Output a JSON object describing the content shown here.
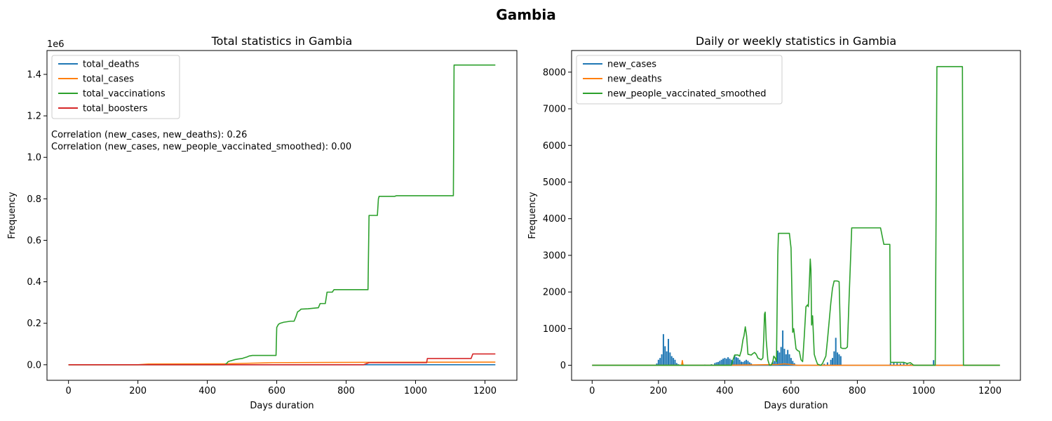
{
  "figure": {
    "title": "Gambia"
  },
  "chart_data": [
    {
      "type": "line",
      "title": "Total statistics in Gambia",
      "xlabel": "Days duration",
      "ylabel": "Frequency",
      "y_scale_label": "1e6",
      "xlim": [
        -62,
        1292
      ],
      "ylim": [
        -75000,
        1515000
      ],
      "x_ticks": [
        0,
        200,
        400,
        600,
        800,
        1000,
        1200
      ],
      "x_tick_labels": [
        "0",
        "200",
        "400",
        "600",
        "800",
        "1000",
        "1200"
      ],
      "y_ticks": [
        0,
        200000,
        400000,
        600000,
        800000,
        1000000,
        1200000,
        1400000
      ],
      "y_tick_labels": [
        "0.0",
        "0.2",
        "0.4",
        "0.6",
        "0.8",
        "1.0",
        "1.2",
        "1.4"
      ],
      "legend_position": "top-left",
      "annotations": [
        "Correlation (new_cases, new_deaths): 0.26",
        "Correlation (new_cases, new_people_vaccinated_smoothed): 0.00"
      ],
      "series": [
        {
          "name": "total_deaths",
          "color": "#1f77b4",
          "x": [
            0,
            200,
            400,
            600,
            800,
            1000,
            1230
          ],
          "y": [
            0,
            0,
            0,
            0,
            0,
            0,
            0
          ]
        },
        {
          "name": "total_cases",
          "color": "#ff7f0e",
          "x": [
            0,
            200,
            230,
            450,
            590,
            740,
            900,
            1100,
            1230
          ],
          "y": [
            0,
            0,
            3500,
            4500,
            10000,
            11000,
            12000,
            12500,
            12600
          ]
        },
        {
          "name": "total_vaccinations",
          "color": "#2ca02c",
          "x": [
            0,
            450,
            455,
            460,
            465,
            470,
            480,
            490,
            500,
            505,
            515,
            520,
            530,
            598,
            600,
            605,
            610,
            620,
            640,
            650,
            655,
            660,
            665,
            670,
            690,
            720,
            725,
            740,
            745,
            760,
            765,
            780,
            863,
            866,
            868,
            890,
            893,
            895,
            940,
            945,
            1109,
            1111,
            1120,
            1230
          ],
          "y": [
            0,
            0,
            5000,
            15000,
            18000,
            20000,
            25000,
            28000,
            30000,
            33000,
            38000,
            42000,
            45000,
            45000,
            180000,
            195000,
            200000,
            205000,
            210000,
            210000,
            230000,
            255000,
            260000,
            268000,
            270000,
            275000,
            295000,
            295000,
            350000,
            350000,
            362000,
            362000,
            362000,
            720000,
            720000,
            720000,
            800000,
            812000,
            812000,
            815000,
            815000,
            1445000,
            1445000,
            1445000
          ]
        },
        {
          "name": "total_boosters",
          "color": "#d62728",
          "x": [
            0,
            850,
            866,
            1032,
            1034,
            1160,
            1165,
            1230
          ],
          "y": [
            0,
            0,
            10000,
            10000,
            30000,
            30000,
            52000,
            52000
          ]
        }
      ]
    },
    {
      "type": "line",
      "title": "Daily or weekly statistics in Gambia",
      "xlabel": "Days duration",
      "ylabel": "Frequency",
      "xlim": [
        -62,
        1292
      ],
      "ylim": [
        -410,
        8590
      ],
      "x_ticks": [
        0,
        200,
        400,
        600,
        800,
        1000,
        1200
      ],
      "x_tick_labels": [
        "0",
        "200",
        "400",
        "600",
        "800",
        "1000",
        "1200"
      ],
      "y_ticks": [
        0,
        1000,
        2000,
        3000,
        4000,
        5000,
        6000,
        7000,
        8000
      ],
      "y_tick_labels": [
        "0",
        "1000",
        "2000",
        "3000",
        "4000",
        "5000",
        "6000",
        "7000",
        "8000"
      ],
      "legend_position": "top-left",
      "series": [
        {
          "name": "new_cases",
          "color": "#1f77b4",
          "spikes": {
            "x": [
              195,
              200,
              205,
              210,
              215,
              220,
              225,
              230,
              235,
              240,
              245,
              250,
              255,
              260,
              340,
              360,
              370,
              375,
              380,
              385,
              390,
              395,
              400,
              405,
              410,
              415,
              420,
              425,
              430,
              435,
              440,
              445,
              450,
              455,
              460,
              465,
              470,
              475,
              480,
              545,
              550,
              555,
              560,
              565,
              570,
              575,
              580,
              585,
              590,
              595,
              600,
              605,
              610,
              700,
              710,
              720,
              725,
              730,
              735,
              740,
              745,
              750,
              900,
              910,
              920,
              930,
              940,
              950,
              960,
              970,
              1030
            ],
            "y": [
              50,
              150,
              200,
              300,
              850,
              520,
              380,
              720,
              350,
              250,
              200,
              150,
              60,
              30,
              20,
              30,
              60,
              80,
              90,
              120,
              150,
              180,
              200,
              180,
              220,
              180,
              150,
              120,
              280,
              220,
              200,
              150,
              100,
              90,
              120,
              150,
              120,
              80,
              50,
              80,
              120,
              180,
              400,
              350,
              500,
              950,
              450,
              300,
              420,
              300,
              200,
              120,
              60,
              40,
              80,
              150,
              200,
              380,
              750,
              350,
              300,
              250,
              60,
              80,
              60,
              50,
              80,
              40,
              30,
              20,
              140
            ]
          }
        },
        {
          "name": "new_deaths",
          "color": "#ff7f0e",
          "x": [
            0,
            270,
            272,
            274,
            276,
            400,
            560,
            580,
            600,
            620,
            1230
          ],
          "y": [
            0,
            0,
            130,
            20,
            0,
            0,
            20,
            40,
            20,
            0,
            0
          ]
        },
        {
          "name": "new_people_vaccinated_smoothed",
          "color": "#2ca02c",
          "x": [
            0,
            420,
            425,
            430,
            440,
            445,
            450,
            455,
            458,
            462,
            466,
            470,
            480,
            485,
            490,
            495,
            500,
            510,
            515,
            518,
            520,
            522,
            525,
            530,
            535,
            540,
            545,
            548,
            552,
            556,
            560,
            562,
            565,
            595,
            600,
            605,
            608,
            612,
            615,
            620,
            625,
            630,
            635,
            640,
            645,
            650,
            652,
            655,
            658,
            660,
            662,
            665,
            670,
            675,
            680,
            690,
            695,
            700,
            705,
            710,
            715,
            720,
            725,
            730,
            735,
            740,
            745,
            750,
            755,
            765,
            770,
            775,
            780,
            783,
            785,
            870,
            880,
            895,
            898,
            900,
            940,
            950,
            960,
            970,
            1030,
            1035,
            1040,
            1117,
            1120,
            1130,
            1230
          ],
          "y": [
            0,
            0,
            150,
            280,
            280,
            250,
            400,
            700,
            800,
            1050,
            800,
            300,
            280,
            320,
            350,
            300,
            200,
            150,
            200,
            800,
            1400,
            1450,
            700,
            150,
            0,
            0,
            100,
            250,
            200,
            100,
            3000,
            3600,
            3600,
            3600,
            3200,
            900,
            1000,
            700,
            450,
            400,
            380,
            150,
            100,
            800,
            1600,
            1650,
            1600,
            2200,
            2900,
            2600,
            1100,
            1350,
            300,
            150,
            30,
            0,
            50,
            150,
            250,
            700,
            1200,
            1700,
            2100,
            2300,
            2300,
            2300,
            2280,
            480,
            460,
            460,
            500,
            1800,
            3000,
            3750,
            3750,
            3750,
            3300,
            3300,
            3300,
            80,
            80,
            50,
            70,
            0,
            0,
            0,
            8150,
            8150,
            0,
            0,
            0
          ]
        }
      ]
    }
  ]
}
